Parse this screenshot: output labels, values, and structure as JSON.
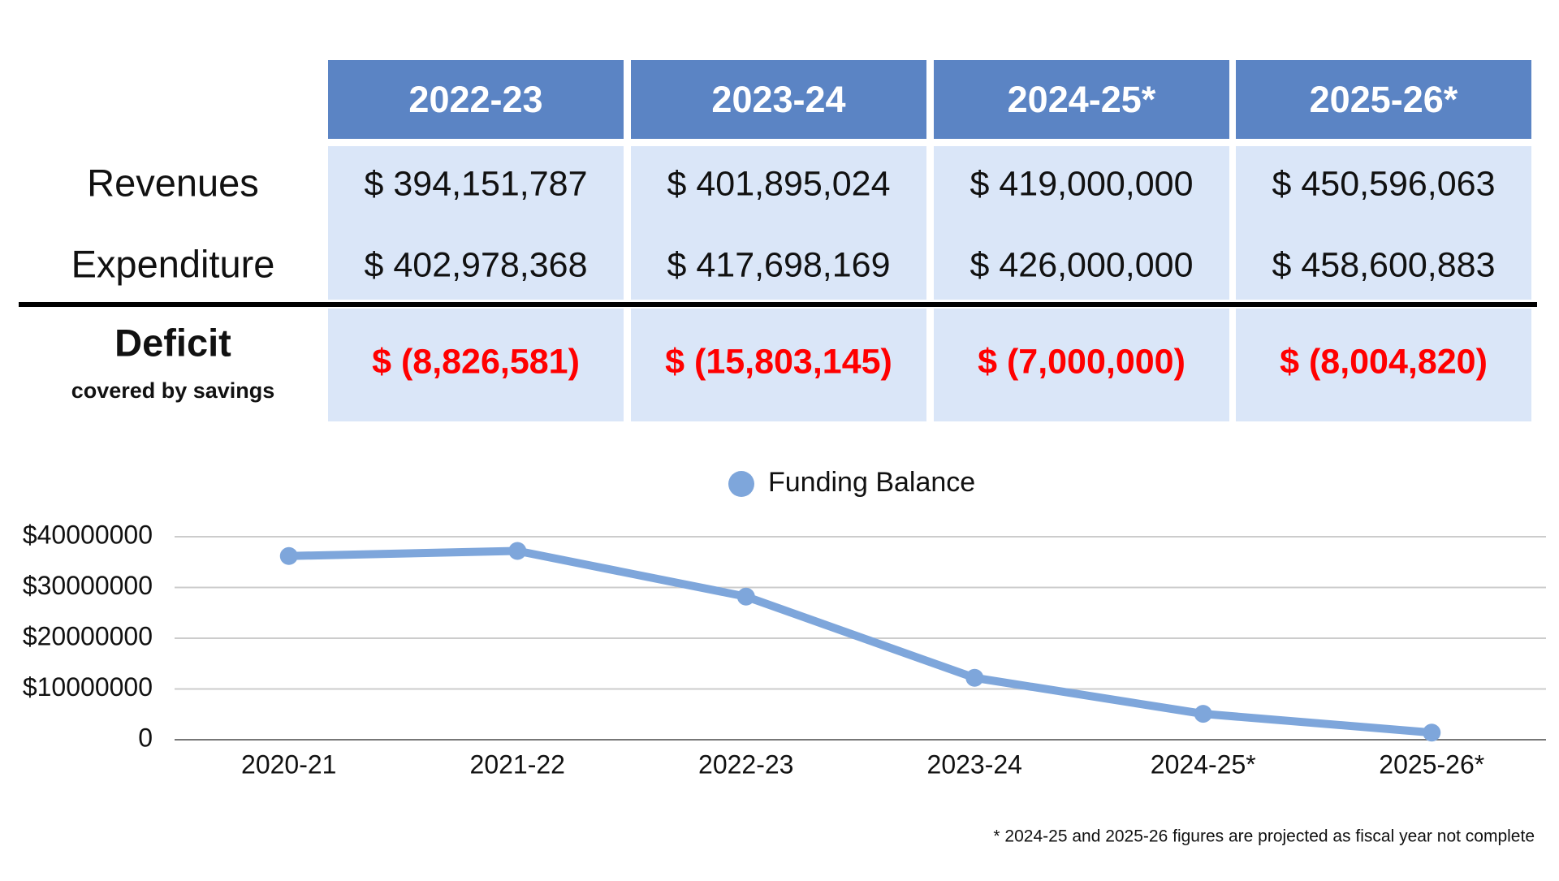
{
  "table": {
    "columns": [
      "2022-23",
      "2023-24",
      "2024-25*",
      "2025-26*"
    ],
    "rows": [
      {
        "label": "Revenues",
        "cells": [
          "$ 394,151,787",
          "$ 401,895,024",
          "$ 419,000,000",
          "$ 450,596,063"
        ]
      },
      {
        "label": "Expenditure",
        "cells": [
          "$ 402,978,368",
          "$ 417,698,169",
          "$ 426,000,000",
          "$ 458,600,883"
        ]
      },
      {
        "label": "Deficit",
        "sublabel": "covered by savings",
        "cells": [
          "$ (8,826,581)",
          "$ (15,803,145)",
          "$ (7,000,000)",
          "$ (8,004,820)"
        ]
      }
    ]
  },
  "chart_data": {
    "type": "line",
    "categories": [
      "2020-21",
      "2021-22",
      "2022-23",
      "2023-24",
      "2024-25*",
      "2025-26*"
    ],
    "series": [
      {
        "name": "Funding Balance",
        "color": "#7ea6db",
        "values": [
          36200000,
          37200000,
          28200000,
          12200000,
          5100000,
          1400000
        ]
      }
    ],
    "ylim": [
      0,
      40000000
    ],
    "yticks": [
      0,
      {
        "value": 10000000,
        "label": "$10000000"
      },
      {
        "value": 20000000,
        "label": "$20000000"
      },
      {
        "value": 30000000,
        "label": "$30000000"
      },
      {
        "value": 40000000,
        "label": "$40000000"
      }
    ],
    "grid": true,
    "legend": "top"
  },
  "footnote": "* 2024-25 and 2025-26 figures are projected as fiscal year not complete"
}
